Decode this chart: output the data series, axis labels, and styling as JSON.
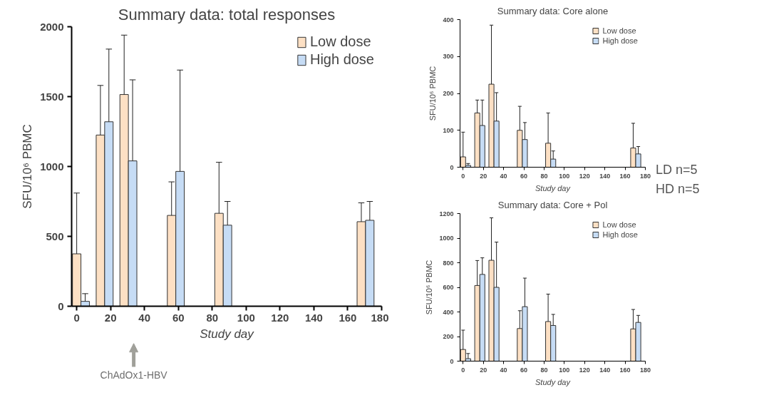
{
  "chart_data": [
    {
      "type": "bar",
      "title": "Summary data: total responses",
      "xlabel": "Study day",
      "ylabel": "SFU/10⁶ PBMC",
      "xlim": [
        -3,
        180
      ],
      "xticks": [
        0,
        20,
        40,
        60,
        80,
        100,
        120,
        140,
        160,
        180
      ],
      "ylim": [
        0,
        2000
      ],
      "yticks": [
        0,
        500,
        1000,
        1500,
        2000
      ],
      "grid": false,
      "legend": "top right",
      "annotations": [
        "ChAdOx1-HBV"
      ],
      "series": [
        {
          "name": "Low dose",
          "color": "#fde0c4",
          "x": [
            0,
            14,
            28,
            56,
            84,
            168
          ],
          "values": [
            375,
            1225,
            1515,
            650,
            665,
            605
          ],
          "errors": [
            [
              375,
              810
            ],
            [
              1225,
              1580
            ],
            [
              1515,
              1940
            ],
            [
              650,
              890
            ],
            [
              665,
              1030
            ],
            [
              605,
              740
            ]
          ]
        },
        {
          "name": "High dose",
          "color": "#c6dcf5",
          "x": [
            5,
            19,
            33,
            61,
            89,
            173
          ],
          "values": [
            35,
            1320,
            1040,
            965,
            580,
            615
          ],
          "errors": [
            [
              35,
              90
            ],
            [
              1320,
              1840
            ],
            [
              1040,
              1620
            ],
            [
              965,
              1690
            ],
            [
              580,
              750
            ],
            [
              615,
              750
            ]
          ]
        }
      ]
    },
    {
      "type": "bar",
      "title": "Summary data: Core alone",
      "xlabel": "Study day",
      "ylabel": "SFU/10⁶ PBMC",
      "xlim": [
        -3,
        180
      ],
      "xticks": [
        0,
        20,
        40,
        60,
        80,
        100,
        120,
        140,
        160,
        180
      ],
      "ylim": [
        0,
        400
      ],
      "yticks": [
        0,
        100,
        200,
        300,
        400
      ],
      "grid": false,
      "legend": "top right",
      "series": [
        {
          "name": "Low dose",
          "color": "#fde0c4",
          "x": [
            0,
            14,
            28,
            56,
            84,
            168
          ],
          "values": [
            28,
            147,
            225,
            100,
            65,
            52
          ],
          "errors": [
            [
              28,
              95
            ],
            [
              147,
              182
            ],
            [
              225,
              385
            ],
            [
              100,
              165
            ],
            [
              65,
              147
            ],
            [
              52,
              119
            ]
          ]
        },
        {
          "name": "High dose",
          "color": "#c6dcf5",
          "x": [
            5,
            19,
            33,
            61,
            89,
            173
          ],
          "values": [
            5,
            113,
            125,
            75,
            22,
            36
          ],
          "errors": [
            [
              5,
              10
            ],
            [
              113,
              182
            ],
            [
              125,
              202
            ],
            [
              75,
              121
            ],
            [
              22,
              44
            ],
            [
              36,
              56
            ]
          ]
        }
      ]
    },
    {
      "type": "bar",
      "title": "Summary data: Core + Pol",
      "xlabel": "Study day",
      "ylabel": "SFU/10⁶ PBMC",
      "xlim": [
        -3,
        180
      ],
      "xticks": [
        0,
        20,
        40,
        60,
        80,
        100,
        120,
        140,
        160,
        180
      ],
      "ylim": [
        0,
        1200
      ],
      "yticks": [
        0,
        200,
        400,
        600,
        800,
        1000,
        1200
      ],
      "grid": false,
      "legend": "top right",
      "series": [
        {
          "name": "Low dose",
          "color": "#fde0c4",
          "x": [
            0,
            14,
            28,
            56,
            84,
            168
          ],
          "values": [
            95,
            615,
            820,
            265,
            322,
            262
          ],
          "errors": [
            [
              95,
              252
            ],
            [
              615,
              818
            ],
            [
              820,
              1165
            ],
            [
              265,
              410
            ],
            [
              322,
              545
            ],
            [
              262,
              420
            ]
          ]
        },
        {
          "name": "High dose",
          "color": "#c6dcf5",
          "x": [
            5,
            19,
            33,
            61,
            89,
            173
          ],
          "values": [
            20,
            705,
            600,
            443,
            290,
            315
          ],
          "errors": [
            [
              20,
              62
            ],
            [
              705,
              840
            ],
            [
              600,
              968
            ],
            [
              443,
              675
            ],
            [
              290,
              380
            ],
            [
              315,
              372
            ]
          ]
        }
      ]
    },
    {
      "type": "other",
      "annotations": [
        "LD n=5",
        "HD n=5"
      ]
    }
  ]
}
